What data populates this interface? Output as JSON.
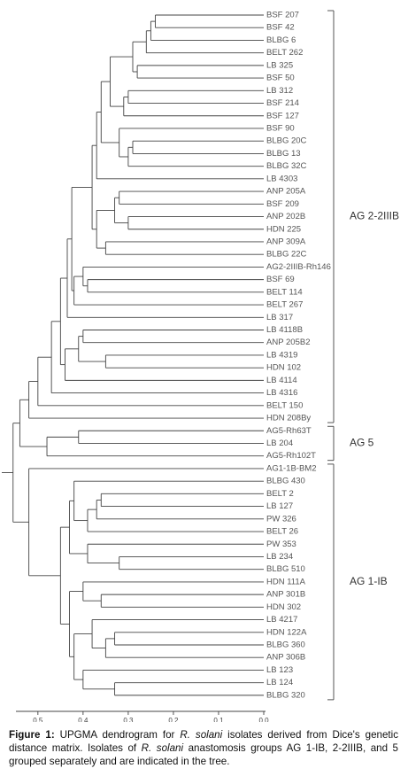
{
  "figure": {
    "leaves": [
      "BSF 207",
      "BSF 42",
      "BLBG 6",
      "BELT 262",
      "LB 325",
      "BSF 50",
      "LB 312",
      "BSF 214",
      "BSF 127",
      "BSF 90",
      "BLBG 20C",
      "BLBG 13",
      "BLBG 32C",
      "LB 4303",
      "ANP 205A",
      "BSF 209",
      "ANP 202B",
      "HDN 225",
      "ANP 309A",
      "BLBG 22C",
      "AG2-2IIIB-Rh146",
      "BSF 69",
      "BELT 114",
      "BELT 267",
      "LB 317",
      "LB 4118B",
      "ANP 205B2",
      "LB 4319",
      "HDN 102",
      "LB 4114",
      "LB 4316",
      "BELT 150",
      "HDN 208By",
      "AG5-Rh63T",
      "LB 204",
      "AG5-Rh102T",
      "AG1-1B-BM2",
      "BLBG 430",
      "BELT 2",
      "LB 127",
      "PW 326",
      "BELT 26",
      "PW 353",
      "LB 234",
      "BLBG 510",
      "HDN 111A",
      "ANP 301B",
      "HDN 302",
      "LB 4217",
      "HDN 122A",
      "BLBG 360",
      "ANP 306B",
      "LB 123",
      "LB 124",
      "BLBG 320"
    ],
    "tree": {
      "h": 0.555,
      "c": [
        {
          "h": 0.54,
          "c": [
            {
              "h": 0.52,
              "c": [
                {
                  "h": 0.5,
                  "c": [
                    {
                      "h": 0.47,
                      "c": [
                        {
                          "h": 0.45,
                          "c": [
                            {
                              "h": 0.435,
                              "c": [
                                {
                                  "h": 0.425,
                                  "c": [
                                    {
                                      "h": 0.38,
                                      "c": [
                                        {
                                          "h": 0.37,
                                          "c": [
                                            {
                                              "h": 0.36,
                                              "c": [
                                                {
                                                  "h": 0.34,
                                                  "c": [
                                                    {
                                                      "h": 0.29,
                                                      "c": [
                                                        {
                                                          "h": 0.26,
                                                          "c": [
                                                            {
                                                              "h": 0.25,
                                                              "c": [
                                                                {
                                                                  "h": 0.24,
                                                                  "c": [
                                                                    0,
                                                                    1
                                                                  ]
                                                                },
                                                                2
                                                              ]
                                                            },
                                                            3
                                                          ]
                                                        },
                                                        {
                                                          "h": 0.28,
                                                          "c": [
                                                            4,
                                                            5
                                                          ]
                                                        }
                                                      ]
                                                    },
                                                    {
                                                      "h": 0.31,
                                                      "c": [
                                                        {
                                                          "h": 0.3,
                                                          "c": [
                                                            6,
                                                            7
                                                          ]
                                                        },
                                                        8
                                                      ]
                                                    }
                                                  ]
                                                },
                                                {
                                                  "h": 0.32,
                                                  "c": [
                                                    9,
                                                    {
                                                      "h": 0.3,
                                                      "c": [
                                                        {
                                                          "h": 0.29,
                                                          "c": [
                                                            10,
                                                            11
                                                          ]
                                                        },
                                                        12
                                                      ]
                                                    }
                                                  ]
                                                }
                                              ]
                                            },
                                            13
                                          ]
                                        },
                                        {
                                          "h": 0.37,
                                          "c": [
                                            {
                                              "h": 0.33,
                                              "c": [
                                                {
                                                  "h": 0.32,
                                                  "c": [
                                                    14,
                                                    15
                                                  ]
                                                },
                                                {
                                                  "h": 0.3,
                                                  "c": [
                                                    16,
                                                    17
                                                  ]
                                                }
                                              ]
                                            },
                                            {
                                              "h": 0.35,
                                              "c": [
                                                18,
                                                19
                                              ]
                                            }
                                          ]
                                        }
                                      ]
                                    },
                                    {
                                      "h": 0.42,
                                      "c": [
                                        {
                                          "h": 0.4,
                                          "c": [
                                            20,
                                            {
                                              "h": 0.39,
                                              "c": [
                                                21,
                                                22
                                              ]
                                            }
                                          ]
                                        },
                                        23
                                      ]
                                    }
                                  ]
                                },
                                24
                              ]
                            },
                            {
                              "h": 0.44,
                              "c": [
                                {
                                  "h": 0.41,
                                  "c": [
                                    {
                                      "h": 0.4,
                                      "c": [
                                        25,
                                        26
                                      ]
                                    },
                                    {
                                      "h": 0.35,
                                      "c": [
                                        27,
                                        28
                                      ]
                                    }
                                  ]
                                },
                                29
                              ]
                            }
                          ]
                        },
                        30
                      ]
                    },
                    31
                  ]
                },
                32
              ]
            },
            {
              "h": 0.48,
              "c": [
                {
                  "h": 0.41,
                  "c": [
                    33,
                    34
                  ]
                },
                35
              ]
            }
          ]
        },
        {
          "h": 0.52,
          "c": [
            36,
            {
              "h": 0.45,
              "c": [
                {
                  "h": 0.43,
                  "c": [
                    {
                      "h": 0.42,
                      "c": [
                        37,
                        {
                          "h": 0.39,
                          "c": [
                            {
                              "h": 0.37,
                              "c": [
                                {
                                  "h": 0.36,
                                  "c": [
                                    38,
                                    39
                                  ]
                                },
                                40
                              ]
                            },
                            41
                          ]
                        }
                      ]
                    },
                    {
                      "h": 0.39,
                      "c": [
                        42,
                        {
                          "h": 0.32,
                          "c": [
                            43,
                            44
                          ]
                        }
                      ]
                    }
                  ]
                },
                {
                  "h": 0.43,
                  "c": [
                    {
                      "h": 0.4,
                      "c": [
                        45,
                        {
                          "h": 0.36,
                          "c": [
                            46,
                            47
                          ]
                        }
                      ]
                    },
                    {
                      "h": 0.42,
                      "c": [
                        {
                          "h": 0.38,
                          "c": [
                            48,
                            {
                              "h": 0.35,
                              "c": [
                                {
                                  "h": 0.33,
                                  "c": [
                                    49,
                                    50
                                  ]
                                },
                                51
                              ]
                            }
                          ]
                        },
                        {
                          "h": 0.4,
                          "c": [
                            52,
                            {
                              "h": 0.33,
                              "c": [
                                53,
                                54
                              ]
                            }
                          ]
                        }
                      ]
                    }
                  ]
                }
              ]
            }
          ]
        }
      ]
    },
    "xlim": [
      0.58,
      0
    ],
    "xticks": [
      0.5,
      0.4,
      0.3,
      0.2,
      0.1,
      {
        "value": 0,
        "label": "0.0"
      }
    ],
    "groups": [
      {
        "label": "AG 2-2IIIB",
        "from": 0,
        "to": 32
      },
      {
        "label": "AG 5",
        "from": 33,
        "to": 35
      },
      {
        "label": "AG 1-IB",
        "from": 36,
        "to": 54
      }
    ],
    "caption": [
      "Figure 1:",
      " UPGMA dendrogram for ",
      "R. solani",
      " isolates derived from Dice's genetic distance matrix. Isolates of ",
      "R. solani",
      " anastomosis groups AG 1-IB, 2-2IIIB, and 5 grouped separately and are indicated in the tree."
    ]
  }
}
